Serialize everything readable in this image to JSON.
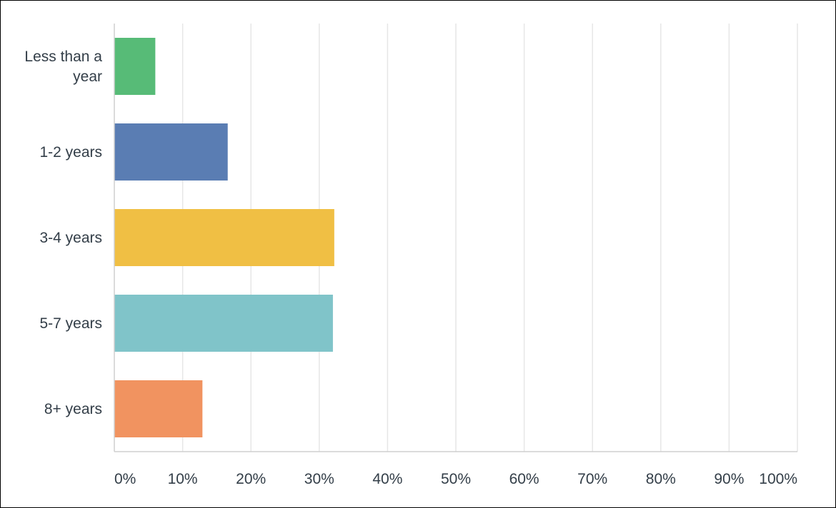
{
  "chart_data": {
    "type": "bar",
    "orientation": "horizontal",
    "title": "",
    "xlabel": "",
    "ylabel": "",
    "categories": [
      [
        "Less than a",
        "year"
      ],
      [
        "1-2 years"
      ],
      [
        "3-4 years"
      ],
      [
        "5-7 years"
      ],
      [
        "8+ years"
      ]
    ],
    "values": [
      6.0,
      16.6,
      32.2,
      32.0,
      12.9
    ],
    "colors": [
      "#57bb77",
      "#5a7db3",
      "#f0bf44",
      "#80c4c9",
      "#f19360"
    ],
    "xlim": [
      0,
      100
    ],
    "ticks": [
      "0%",
      "10%",
      "20%",
      "30%",
      "40%",
      "50%",
      "60%",
      "70%",
      "80%",
      "90%",
      "100%"
    ],
    "grid": true,
    "legend": "none",
    "grid_color": "#e6e6e6",
    "axis_color": "#cfcfcf",
    "text_color": "#333e48"
  }
}
